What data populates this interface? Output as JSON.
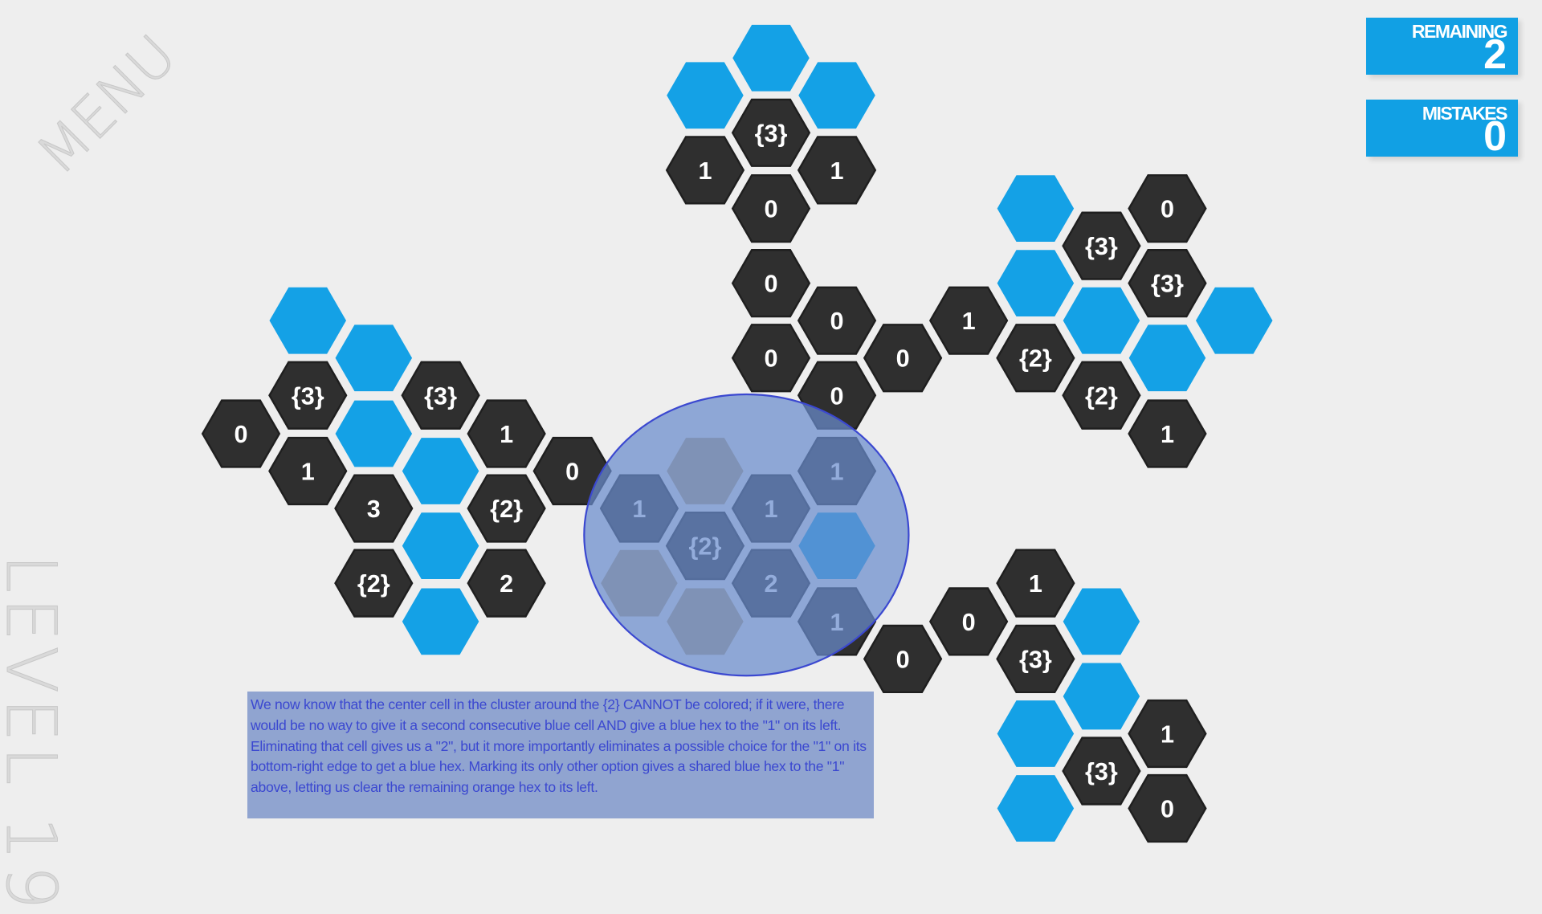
{
  "menu_label": "MENU",
  "level_label": "LEVEL 19",
  "stats": {
    "remaining_label": "REMAINING",
    "remaining_value": "2",
    "mistakes_label": "MISTAKES",
    "mistakes_value": "0"
  },
  "colors": {
    "blue": "#14a1e6",
    "dark": "#2f2f2f",
    "orange": "#b8a27a",
    "background": "#eeeeee",
    "highlight": "#3b48d0"
  },
  "annotation": "We now know that the center cell in the cluster around the {2} CANNOT be colored; if it were, there would be no way to give it a second consecutive blue cell AND give a blue hex to the \"1\" on its left.  Eliminating that cell gives us a \"2\", but it more importantly eliminates a possible choice for the \"1\" on its bottom-right edge to get a blue hex. Marking its only other option gives a shared blue hex to the \"1\" above, letting us clear the remaining orange hex to its left.",
  "cells": [
    {
      "state": "blue",
      "label": ""
    },
    {
      "state": "blue",
      "label": ""
    },
    {
      "state": "blue",
      "label": ""
    },
    {
      "state": "dark",
      "label": "{3}"
    },
    {
      "state": "dark",
      "label": "1"
    },
    {
      "state": "dark",
      "label": "1"
    },
    {
      "state": "dark",
      "label": "0"
    },
    {
      "state": "dark",
      "label": "0"
    },
    {
      "state": "dark",
      "label": "0"
    },
    {
      "state": "dark",
      "label": "0"
    },
    {
      "state": "dark",
      "label": "0"
    },
    {
      "state": "dark",
      "label": "0"
    },
    {
      "state": "dark",
      "label": "1"
    },
    {
      "state": "blue",
      "label": ""
    },
    {
      "state": "dark",
      "label": "0"
    },
    {
      "state": "dark",
      "label": "{3}"
    },
    {
      "state": "blue",
      "label": ""
    },
    {
      "state": "dark",
      "label": "{3}"
    },
    {
      "state": "blue",
      "label": ""
    },
    {
      "state": "blue",
      "label": ""
    },
    {
      "state": "dark",
      "label": "{2}"
    },
    {
      "state": "blue",
      "label": ""
    },
    {
      "state": "dark",
      "label": "{2}"
    },
    {
      "state": "dark",
      "label": "1"
    },
    {
      "state": "blue",
      "label": ""
    },
    {
      "state": "blue",
      "label": ""
    },
    {
      "state": "dark",
      "label": "{3}"
    },
    {
      "state": "dark",
      "label": "{3}"
    },
    {
      "state": "dark",
      "label": "0"
    },
    {
      "state": "blue",
      "label": ""
    },
    {
      "state": "dark",
      "label": "1"
    },
    {
      "state": "dark",
      "label": "1"
    },
    {
      "state": "blue",
      "label": ""
    },
    {
      "state": "dark",
      "label": "0"
    },
    {
      "state": "dark",
      "label": "3"
    },
    {
      "state": "dark",
      "label": "{2}"
    },
    {
      "state": "blue",
      "label": ""
    },
    {
      "state": "dark",
      "label": "{2}"
    },
    {
      "state": "dark",
      "label": "2"
    },
    {
      "state": "blue",
      "label": ""
    },
    {
      "state": "orange",
      "label": ""
    },
    {
      "state": "dark",
      "label": "1"
    },
    {
      "state": "dark",
      "label": "1"
    },
    {
      "state": "dark",
      "label": "1"
    },
    {
      "state": "dark",
      "label": "{2}"
    },
    {
      "state": "blue",
      "label": ""
    },
    {
      "state": "orange",
      "label": ""
    },
    {
      "state": "dark",
      "label": "2"
    },
    {
      "state": "orange",
      "label": ""
    },
    {
      "state": "dark",
      "label": "1"
    },
    {
      "state": "dark",
      "label": "1"
    },
    {
      "state": "dark",
      "label": "0"
    },
    {
      "state": "blue",
      "label": ""
    },
    {
      "state": "dark",
      "label": "0"
    },
    {
      "state": "dark",
      "label": "{3}"
    },
    {
      "state": "blue",
      "label": ""
    },
    {
      "state": "blue",
      "label": ""
    },
    {
      "state": "dark",
      "label": "1"
    },
    {
      "state": "dark",
      "label": "{3}"
    },
    {
      "state": "blue",
      "label": ""
    },
    {
      "state": "dark",
      "label": "0"
    }
  ]
}
